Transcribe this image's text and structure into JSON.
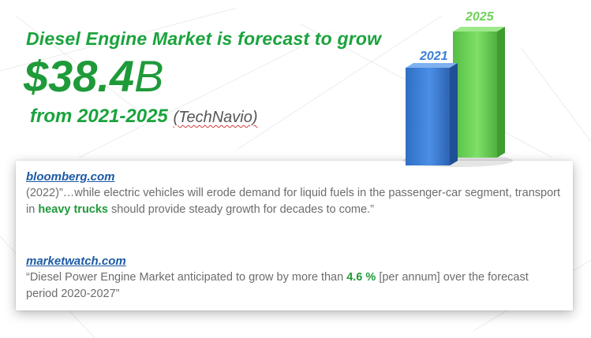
{
  "headline": {
    "line1": "Diesel Engine Market is forecast to grow",
    "amount_number": "$38.4",
    "amount_unit": "B",
    "period": "from 2021-2025",
    "source": "(TechNavio)"
  },
  "bars": [
    {
      "label": "2021",
      "color": "#3d7fd6"
    },
    {
      "label": "2025",
      "color": "#6fd15a"
    }
  ],
  "quotes": [
    {
      "source": "bloomberg.com",
      "text_before": "(2022)”…while electric vehicles will erode demand for liquid fuels in the passenger-car segment, transport in ",
      "highlight": "heavy trucks",
      "text_after": " should provide steady growth for decades to come.”"
    },
    {
      "source": "marketwatch.com",
      "text_before": "“Diesel Power Engine Market anticipated to grow by more than ",
      "highlight": "4.6 %",
      "text_after": " [per annum] over the forecast period 2020-2027”"
    }
  ],
  "colors": {
    "accent_green": "#1aa33c",
    "link_blue": "#1d5aa6",
    "body_gray": "#6c6c6c"
  }
}
